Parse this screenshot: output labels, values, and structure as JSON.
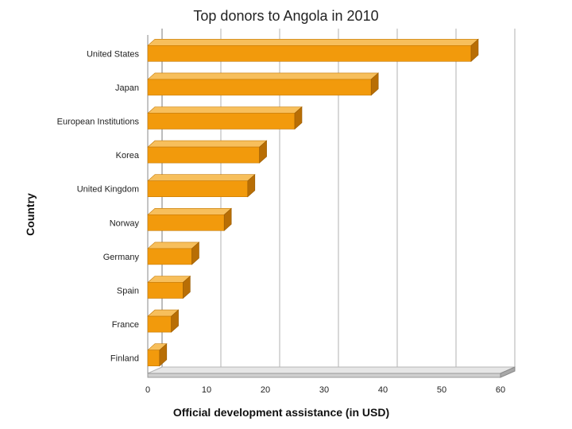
{
  "chart_data": {
    "type": "bar",
    "orientation": "horizontal",
    "title": "Top donors to Angola in 2010",
    "xlabel": "Official development assistance (in USD)",
    "ylabel": "Country",
    "xlim": [
      0,
      60
    ],
    "xticks": [
      "0",
      "10",
      "20",
      "30",
      "40",
      "50",
      "60"
    ],
    "grid": true,
    "bar_color": "#F29A0C",
    "categories": [
      "United States",
      "Japan",
      "European Institutions",
      "Korea",
      "United Kingdom",
      "Norway",
      "Germany",
      "Spain",
      "France",
      "Finland"
    ],
    "values": [
      55,
      38,
      25,
      19,
      17,
      13,
      7.5,
      6,
      4,
      2
    ]
  }
}
